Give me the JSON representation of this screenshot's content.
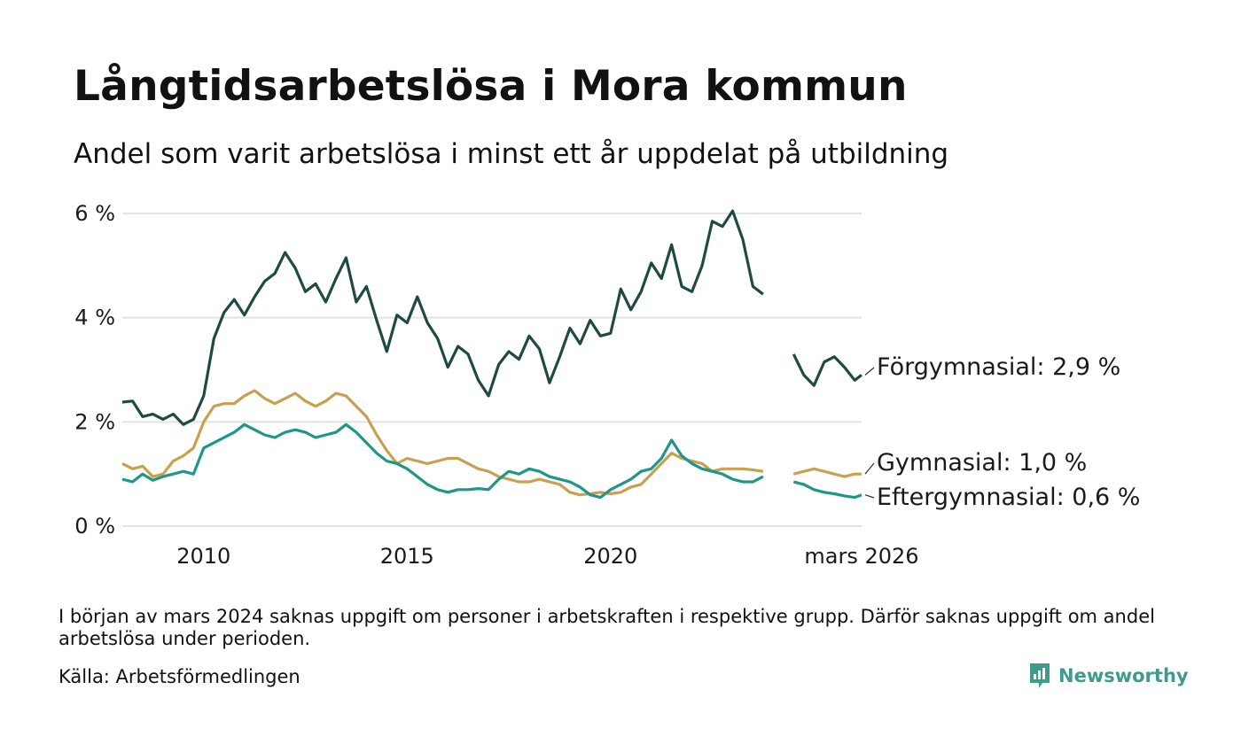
{
  "title": "Långtidsarbetslösa i Mora kommun",
  "subtitle": "Andel som varit arbetslösa i minst ett år uppdelat på utbildning",
  "footnote": "I början av mars 2024 saknas uppgift om personer i arbetskraften i respektive grupp. Därför saknas uppgift om andel arbetslösa under perioden.",
  "source": "Källa: Arbetsförmedlingen",
  "brand": {
    "name": "Newsworthy",
    "color": "#3f9c8c"
  },
  "chart_data": {
    "type": "line",
    "title": "Långtidsarbetslösa i Mora kommun",
    "subtitle": "Andel som varit arbetslösa i minst ett år uppdelat på utbildning",
    "xlabel": "",
    "ylabel": "",
    "x_range": [
      2008.0,
      2026.17
    ],
    "ylim": [
      0,
      6
    ],
    "y_ticks": [
      0,
      2,
      4,
      6
    ],
    "y_tick_labels": [
      "0 %",
      "2 %",
      "4 %",
      "6 %"
    ],
    "x_ticks": [
      2010,
      2015,
      2020,
      2026.17
    ],
    "x_tick_labels": [
      "2010",
      "2015",
      "2020",
      "mars 2026"
    ],
    "gap": [
      2023.75,
      2024.5
    ],
    "grid": true,
    "legend": "end-labels",
    "series": [
      {
        "name": "Förgymnasial",
        "label": "Förgymnasial: 2,9 %",
        "color": "#1f4a42",
        "points": [
          [
            2008.0,
            2.38
          ],
          [
            2008.25,
            2.4
          ],
          [
            2008.5,
            2.1
          ],
          [
            2008.75,
            2.15
          ],
          [
            2009.0,
            2.05
          ],
          [
            2009.25,
            2.15
          ],
          [
            2009.5,
            1.95
          ],
          [
            2009.75,
            2.05
          ],
          [
            2010.0,
            2.5
          ],
          [
            2010.25,
            3.6
          ],
          [
            2010.5,
            4.1
          ],
          [
            2010.75,
            4.35
          ],
          [
            2011.0,
            4.05
          ],
          [
            2011.25,
            4.4
          ],
          [
            2011.5,
            4.7
          ],
          [
            2011.75,
            4.85
          ],
          [
            2012.0,
            5.25
          ],
          [
            2012.25,
            4.95
          ],
          [
            2012.5,
            4.5
          ],
          [
            2012.75,
            4.65
          ],
          [
            2013.0,
            4.3
          ],
          [
            2013.25,
            4.75
          ],
          [
            2013.5,
            5.15
          ],
          [
            2013.75,
            4.3
          ],
          [
            2014.0,
            4.6
          ],
          [
            2014.25,
            3.95
          ],
          [
            2014.5,
            3.35
          ],
          [
            2014.75,
            4.05
          ],
          [
            2015.0,
            3.9
          ],
          [
            2015.25,
            4.4
          ],
          [
            2015.5,
            3.9
          ],
          [
            2015.75,
            3.6
          ],
          [
            2016.0,
            3.05
          ],
          [
            2016.25,
            3.45
          ],
          [
            2016.5,
            3.3
          ],
          [
            2016.75,
            2.8
          ],
          [
            2017.0,
            2.5
          ],
          [
            2017.25,
            3.1
          ],
          [
            2017.5,
            3.35
          ],
          [
            2017.75,
            3.2
          ],
          [
            2018.0,
            3.65
          ],
          [
            2018.25,
            3.4
          ],
          [
            2018.5,
            2.75
          ],
          [
            2018.75,
            3.25
          ],
          [
            2019.0,
            3.8
          ],
          [
            2019.25,
            3.5
          ],
          [
            2019.5,
            3.95
          ],
          [
            2019.75,
            3.65
          ],
          [
            2020.0,
            3.7
          ],
          [
            2020.25,
            4.55
          ],
          [
            2020.5,
            4.15
          ],
          [
            2020.75,
            4.5
          ],
          [
            2021.0,
            5.05
          ],
          [
            2021.25,
            4.75
          ],
          [
            2021.5,
            5.4
          ],
          [
            2021.75,
            4.6
          ],
          [
            2022.0,
            4.5
          ],
          [
            2022.25,
            5.0
          ],
          [
            2022.5,
            5.85
          ],
          [
            2022.75,
            5.75
          ],
          [
            2023.0,
            6.05
          ],
          [
            2023.25,
            5.5
          ],
          [
            2023.5,
            4.6
          ],
          [
            2023.75,
            4.45
          ],
          [
            2024.5,
            3.3
          ],
          [
            2024.75,
            2.9
          ],
          [
            2025.0,
            2.7
          ],
          [
            2025.25,
            3.15
          ],
          [
            2025.5,
            3.25
          ],
          [
            2025.75,
            3.05
          ],
          [
            2026.0,
            2.8
          ],
          [
            2026.17,
            2.9
          ]
        ]
      },
      {
        "name": "Gymnasial",
        "label": "Gymnasial: 1,0 %",
        "color": "#c9a04f",
        "points": [
          [
            2008.0,
            1.2
          ],
          [
            2008.25,
            1.1
          ],
          [
            2008.5,
            1.15
          ],
          [
            2008.75,
            0.95
          ],
          [
            2009.0,
            1.0
          ],
          [
            2009.25,
            1.25
          ],
          [
            2009.5,
            1.35
          ],
          [
            2009.75,
            1.5
          ],
          [
            2010.0,
            2.0
          ],
          [
            2010.25,
            2.3
          ],
          [
            2010.5,
            2.35
          ],
          [
            2010.75,
            2.35
          ],
          [
            2011.0,
            2.5
          ],
          [
            2011.25,
            2.6
          ],
          [
            2011.5,
            2.45
          ],
          [
            2011.75,
            2.35
          ],
          [
            2012.0,
            2.45
          ],
          [
            2012.25,
            2.55
          ],
          [
            2012.5,
            2.4
          ],
          [
            2012.75,
            2.3
          ],
          [
            2013.0,
            2.4
          ],
          [
            2013.25,
            2.55
          ],
          [
            2013.5,
            2.5
          ],
          [
            2013.75,
            2.3
          ],
          [
            2014.0,
            2.1
          ],
          [
            2014.25,
            1.75
          ],
          [
            2014.5,
            1.45
          ],
          [
            2014.75,
            1.2
          ],
          [
            2015.0,
            1.3
          ],
          [
            2015.25,
            1.25
          ],
          [
            2015.5,
            1.2
          ],
          [
            2015.75,
            1.25
          ],
          [
            2016.0,
            1.3
          ],
          [
            2016.25,
            1.3
          ],
          [
            2016.5,
            1.2
          ],
          [
            2016.75,
            1.1
          ],
          [
            2017.0,
            1.05
          ],
          [
            2017.25,
            0.95
          ],
          [
            2017.5,
            0.9
          ],
          [
            2017.75,
            0.85
          ],
          [
            2018.0,
            0.85
          ],
          [
            2018.25,
            0.9
          ],
          [
            2018.5,
            0.85
          ],
          [
            2018.75,
            0.8
          ],
          [
            2019.0,
            0.65
          ],
          [
            2019.25,
            0.6
          ],
          [
            2019.5,
            0.62
          ],
          [
            2019.75,
            0.65
          ],
          [
            2020.0,
            0.62
          ],
          [
            2020.25,
            0.65
          ],
          [
            2020.5,
            0.75
          ],
          [
            2020.75,
            0.8
          ],
          [
            2021.0,
            1.0
          ],
          [
            2021.25,
            1.2
          ],
          [
            2021.5,
            1.4
          ],
          [
            2021.75,
            1.3
          ],
          [
            2022.0,
            1.25
          ],
          [
            2022.25,
            1.2
          ],
          [
            2022.5,
            1.05
          ],
          [
            2022.75,
            1.1
          ],
          [
            2023.0,
            1.1
          ],
          [
            2023.25,
            1.1
          ],
          [
            2023.5,
            1.08
          ],
          [
            2023.75,
            1.05
          ],
          [
            2024.5,
            1.0
          ],
          [
            2024.75,
            1.05
          ],
          [
            2025.0,
            1.1
          ],
          [
            2025.25,
            1.05
          ],
          [
            2025.5,
            1.0
          ],
          [
            2025.75,
            0.95
          ],
          [
            2026.0,
            1.0
          ],
          [
            2026.17,
            1.0
          ]
        ]
      },
      {
        "name": "Eftergymnasial",
        "label": "Eftergymnasial: 0,6 %",
        "color": "#1e9688",
        "points": [
          [
            2008.0,
            0.9
          ],
          [
            2008.25,
            0.85
          ],
          [
            2008.5,
            1.0
          ],
          [
            2008.75,
            0.88
          ],
          [
            2009.0,
            0.95
          ],
          [
            2009.25,
            1.0
          ],
          [
            2009.5,
            1.05
          ],
          [
            2009.75,
            1.0
          ],
          [
            2010.0,
            1.5
          ],
          [
            2010.25,
            1.6
          ],
          [
            2010.5,
            1.7
          ],
          [
            2010.75,
            1.8
          ],
          [
            2011.0,
            1.95
          ],
          [
            2011.25,
            1.85
          ],
          [
            2011.5,
            1.75
          ],
          [
            2011.75,
            1.7
          ],
          [
            2012.0,
            1.8
          ],
          [
            2012.25,
            1.85
          ],
          [
            2012.5,
            1.8
          ],
          [
            2012.75,
            1.7
          ],
          [
            2013.0,
            1.75
          ],
          [
            2013.25,
            1.8
          ],
          [
            2013.5,
            1.95
          ],
          [
            2013.75,
            1.8
          ],
          [
            2014.0,
            1.6
          ],
          [
            2014.25,
            1.4
          ],
          [
            2014.5,
            1.25
          ],
          [
            2014.75,
            1.2
          ],
          [
            2015.0,
            1.1
          ],
          [
            2015.25,
            0.95
          ],
          [
            2015.5,
            0.8
          ],
          [
            2015.75,
            0.7
          ],
          [
            2016.0,
            0.65
          ],
          [
            2016.25,
            0.7
          ],
          [
            2016.5,
            0.7
          ],
          [
            2016.75,
            0.72
          ],
          [
            2017.0,
            0.7
          ],
          [
            2017.25,
            0.9
          ],
          [
            2017.5,
            1.05
          ],
          [
            2017.75,
            1.0
          ],
          [
            2018.0,
            1.1
          ],
          [
            2018.25,
            1.05
          ],
          [
            2018.5,
            0.95
          ],
          [
            2018.75,
            0.9
          ],
          [
            2019.0,
            0.85
          ],
          [
            2019.25,
            0.75
          ],
          [
            2019.5,
            0.6
          ],
          [
            2019.75,
            0.55
          ],
          [
            2020.0,
            0.7
          ],
          [
            2020.25,
            0.8
          ],
          [
            2020.5,
            0.9
          ],
          [
            2020.75,
            1.05
          ],
          [
            2021.0,
            1.1
          ],
          [
            2021.25,
            1.3
          ],
          [
            2021.5,
            1.65
          ],
          [
            2021.75,
            1.35
          ],
          [
            2022.0,
            1.2
          ],
          [
            2022.25,
            1.1
          ],
          [
            2022.5,
            1.05
          ],
          [
            2022.75,
            1.0
          ],
          [
            2023.0,
            0.9
          ],
          [
            2023.25,
            0.85
          ],
          [
            2023.5,
            0.85
          ],
          [
            2023.75,
            0.95
          ],
          [
            2024.5,
            0.85
          ],
          [
            2024.75,
            0.8
          ],
          [
            2025.0,
            0.7
          ],
          [
            2025.25,
            0.65
          ],
          [
            2025.5,
            0.62
          ],
          [
            2025.75,
            0.58
          ],
          [
            2026.0,
            0.55
          ],
          [
            2026.17,
            0.6
          ]
        ]
      }
    ]
  }
}
